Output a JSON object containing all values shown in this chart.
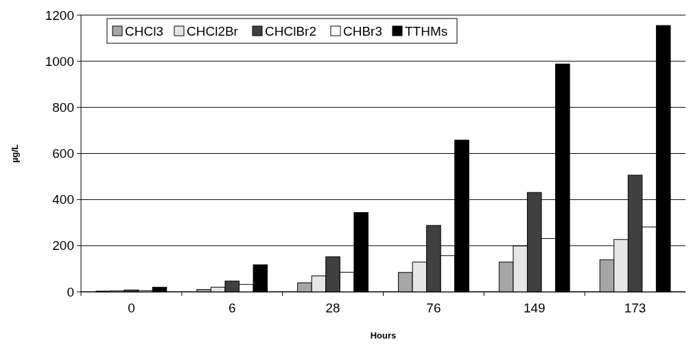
{
  "chart_data": {
    "type": "bar",
    "xlabel": "Hours",
    "ylabel": "µg/L",
    "categories": [
      "0",
      "6",
      "28",
      "76",
      "149",
      "173"
    ],
    "series": [
      {
        "name": "CHCl3",
        "color": "#a6a6a6",
        "values": [
          3,
          10,
          39,
          84,
          129,
          139
        ]
      },
      {
        "name": "CHCl2Br",
        "color": "#e6e6e6",
        "values": [
          4,
          20,
          69,
          129,
          199,
          227
        ]
      },
      {
        "name": "CHClBr2",
        "color": "#404040",
        "values": [
          8,
          47,
          152,
          288,
          431,
          506
        ]
      },
      {
        "name": "CHBr3",
        "color": "#ffffff",
        "values": [
          5,
          32,
          85,
          157,
          231,
          281
        ]
      },
      {
        "name": "TTHMs",
        "color": "#000000",
        "values": [
          20,
          117,
          344,
          658,
          988,
          1155
        ]
      }
    ],
    "ylim": [
      0,
      1200
    ],
    "yticks": [
      0,
      200,
      400,
      600,
      800,
      1000,
      1200
    ],
    "grid": "y",
    "legend": "top"
  }
}
